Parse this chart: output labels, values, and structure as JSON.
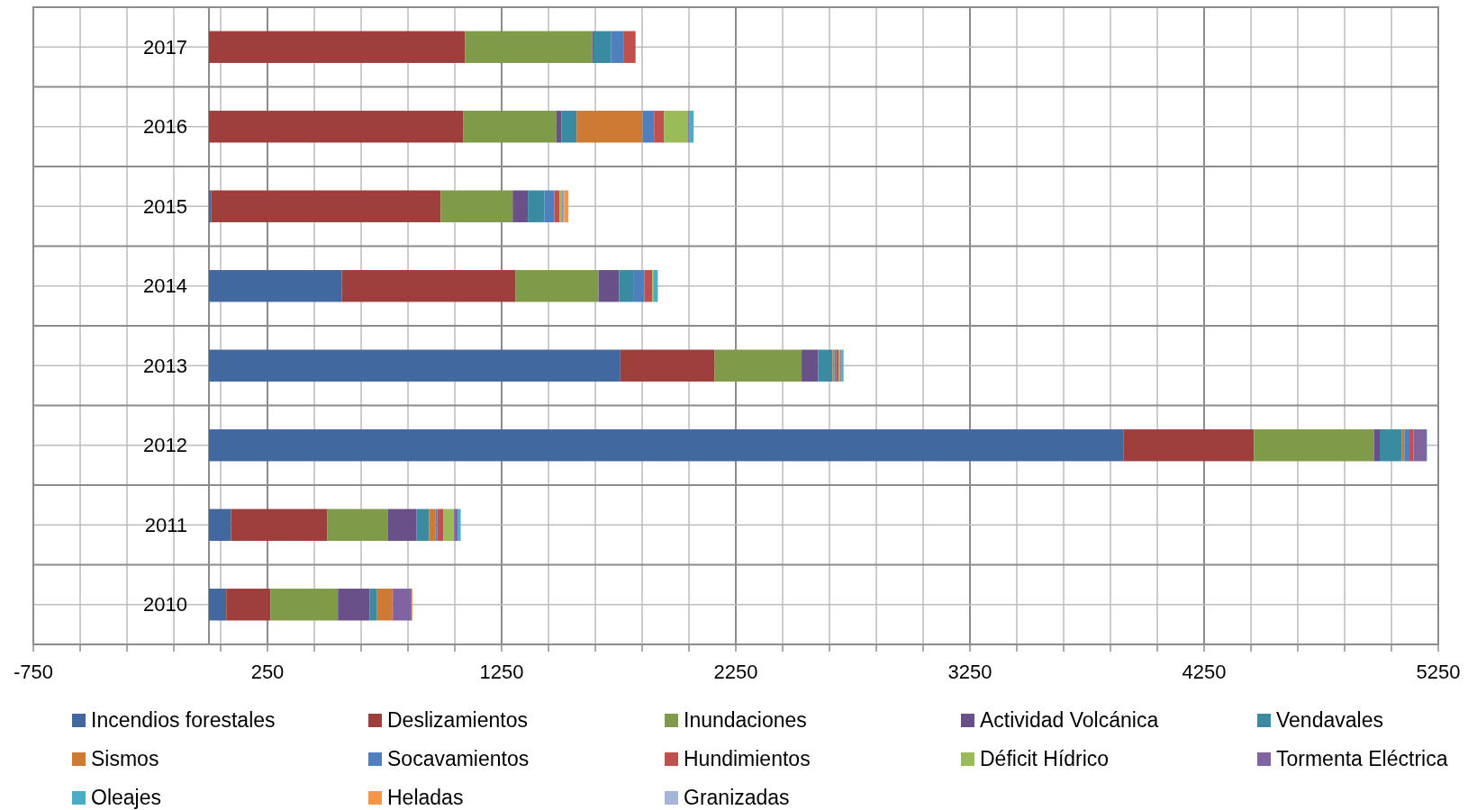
{
  "chart_data": {
    "type": "bar",
    "orientation": "horizontal",
    "stacked": true,
    "categories": [
      "2017",
      "2016",
      "2015",
      "2014",
      "2013",
      "2012",
      "2011",
      "2010"
    ],
    "xlim": [
      -750,
      5250
    ],
    "xticks": [
      -750,
      {
        "value": -550,
        "label": null
      },
      {
        "value": -350,
        "label": null
      },
      {
        "value": -150,
        "label": null
      },
      {
        "value": 50,
        "label": null
      },
      250,
      {
        "value": 450,
        "label": null
      },
      {
        "value": 650,
        "label": null
      },
      {
        "value": 850,
        "label": null
      },
      {
        "value": 1050,
        "label": null
      },
      1250,
      {
        "value": 1450,
        "label": null
      },
      {
        "value": 1650,
        "label": null
      },
      {
        "value": 1850,
        "label": null
      },
      {
        "value": 2050,
        "label": null
      },
      2250,
      {
        "value": 2450,
        "label": null
      },
      {
        "value": 2650,
        "label": null
      },
      {
        "value": 2850,
        "label": null
      },
      {
        "value": 3050,
        "label": null
      },
      3250,
      {
        "value": 3450,
        "label": null
      },
      {
        "value": 3650,
        "label": null
      },
      {
        "value": 3850,
        "label": null
      },
      {
        "value": 4050,
        "label": null
      },
      4250,
      {
        "value": 4450,
        "label": null
      },
      {
        "value": 4650,
        "label": null
      },
      {
        "value": 4850,
        "label": null
      },
      {
        "value": 5050,
        "label": null
      },
      5250
    ],
    "grid": true,
    "legend": "bottom",
    "series": [
      {
        "name": "Incendios forestales",
        "color": "#41699f",
        "values": [
          0,
          0,
          9,
          568,
          1757,
          3905,
          94,
          74
        ]
      },
      {
        "name": "Deslizamientos",
        "color": "#9e3f3d",
        "values": [
          1093,
          1087,
          981,
          742,
          403,
          558,
          412,
          189
        ]
      },
      {
        "name": "Inundaciones",
        "color": "#7f9a48",
        "values": [
          544,
          397,
          307,
          354,
          371,
          512,
          259,
          288
        ]
      },
      {
        "name": "Actividad Volcánica",
        "color": "#6a5088",
        "values": [
          5,
          21,
          65,
          88,
          71,
          25,
          122,
          136
        ]
      },
      {
        "name": "Vendavales",
        "color": "#3a8ba2",
        "values": [
          76,
          65,
          71,
          63,
          61,
          95,
          53,
          31
        ]
      },
      {
        "name": "Sismos",
        "color": "#cd7a35",
        "values": [
          0,
          282,
          0,
          0,
          8,
          10,
          27,
          65
        ]
      },
      {
        "name": "Socavamientos",
        "color": "#4f80bd",
        "values": [
          52,
          49,
          42,
          45,
          8,
          22,
          8,
          0
        ]
      },
      {
        "name": "Hundimientos",
        "color": "#c0504d",
        "values": [
          52,
          42,
          22,
          33,
          10,
          17,
          27,
          5
        ]
      },
      {
        "name": "Déficit Hídrico",
        "color": "#9bbb59",
        "values": [
          0,
          104,
          12,
          7,
          8,
          0,
          45,
          0
        ]
      },
      {
        "name": "Tormenta Eléctrica",
        "color": "#8064a2",
        "values": [
          0,
          3,
          4,
          0,
          5,
          56,
          15,
          77
        ]
      },
      {
        "name": "Oleajes",
        "color": "#4bacc6",
        "values": [
          0,
          20,
          4,
          17,
          8,
          2,
          13,
          0
        ]
      },
      {
        "name": "Heladas",
        "color": "#f79646",
        "values": [
          0,
          0,
          18,
          0,
          0,
          0,
          0,
          4
        ]
      },
      {
        "name": "Granizadas",
        "color": "#a5b5d7",
        "values": [
          0,
          null,
          0,
          0,
          null,
          0,
          0,
          0
        ]
      }
    ]
  }
}
